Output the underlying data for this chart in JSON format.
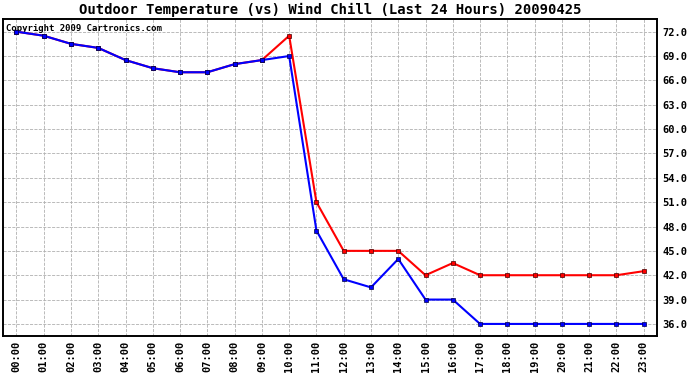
{
  "title": "Outdoor Temperature (vs) Wind Chill (Last 24 Hours) 20090425",
  "copyright": "Copyright 2009 Cartronics.com",
  "x_labels": [
    "00:00",
    "01:00",
    "02:00",
    "03:00",
    "04:00",
    "05:00",
    "06:00",
    "07:00",
    "08:00",
    "09:00",
    "10:00",
    "11:00",
    "12:00",
    "13:00",
    "14:00",
    "15:00",
    "16:00",
    "17:00",
    "18:00",
    "19:00",
    "20:00",
    "21:00",
    "22:00",
    "23:00"
  ],
  "temp_data": [
    72.0,
    71.5,
    70.5,
    70.0,
    68.5,
    67.5,
    67.0,
    67.0,
    68.0,
    68.5,
    71.5,
    51.0,
    45.0,
    45.0,
    45.0,
    42.0,
    43.5,
    42.0,
    42.0,
    42.0,
    42.0,
    42.0,
    42.0,
    42.5
  ],
  "windchill_data": [
    72.0,
    71.5,
    70.5,
    70.0,
    68.5,
    67.5,
    67.0,
    67.0,
    68.0,
    68.5,
    69.0,
    47.5,
    41.5,
    40.5,
    44.0,
    39.0,
    39.0,
    36.0,
    36.0,
    36.0,
    36.0,
    36.0,
    36.0,
    36.0
  ],
  "temp_color": "#ff0000",
  "windchill_color": "#0000ff",
  "bg_color": "#ffffff",
  "plot_bg_color": "#ffffff",
  "grid_color": "#b0b0b0",
  "ylim_min": 34.5,
  "ylim_max": 73.5,
  "yticks": [
    36.0,
    39.0,
    42.0,
    45.0,
    48.0,
    51.0,
    54.0,
    57.0,
    60.0,
    63.0,
    66.0,
    69.0,
    72.0
  ],
  "title_fontsize": 10,
  "tick_fontsize": 7.5,
  "copyright_fontsize": 6.5
}
